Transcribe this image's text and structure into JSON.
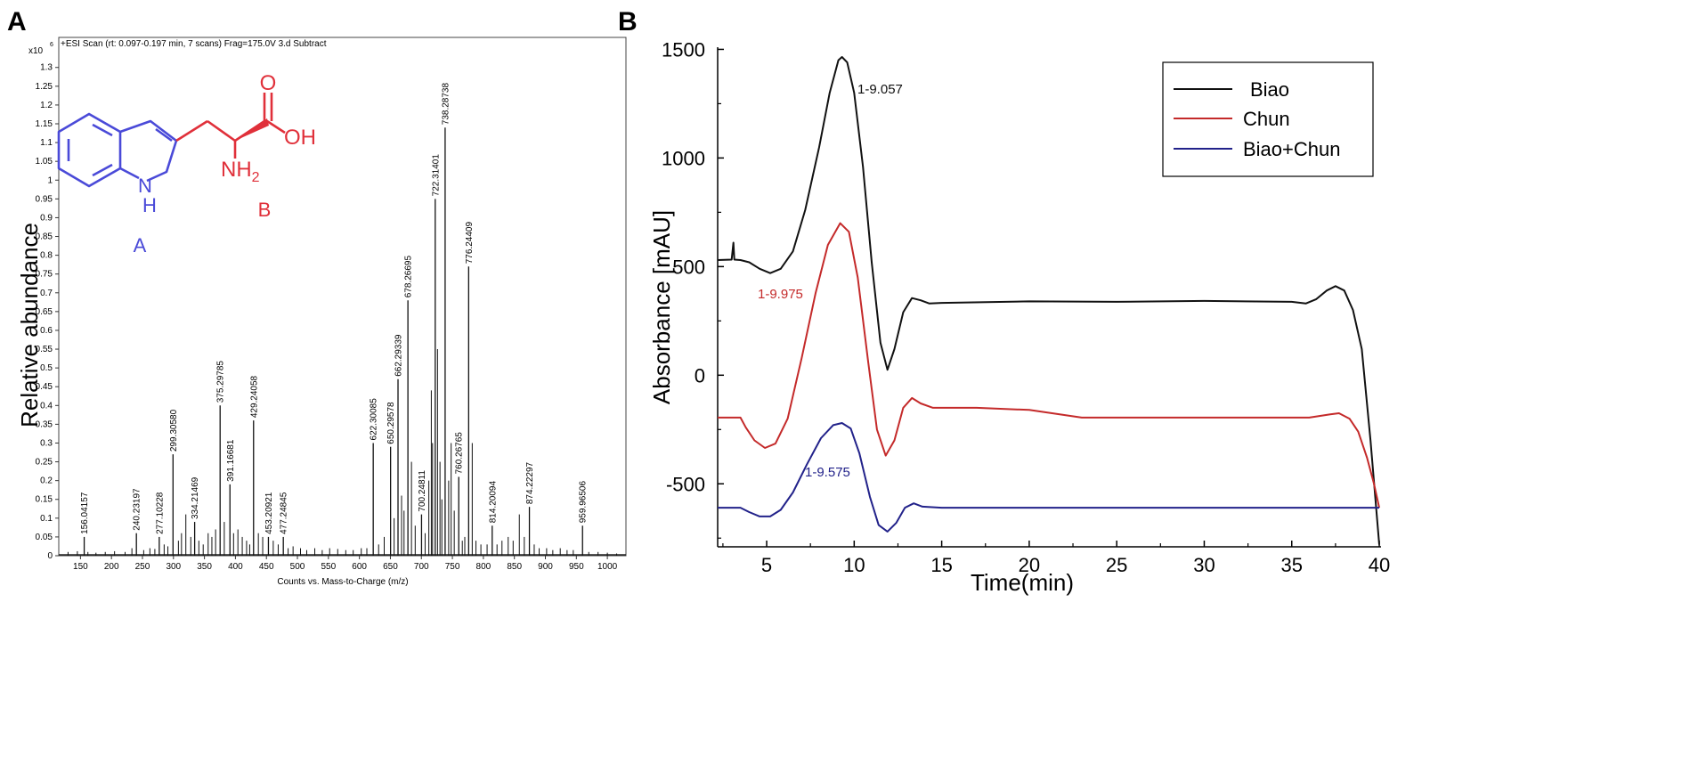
{
  "panels": {
    "a_letter": "A",
    "b_letter": "B"
  },
  "chart_data": [
    {
      "type": "bar",
      "panel": "A",
      "title": "+ESI Scan (rt: 0.097-0.197 min, 7 scans) Frag=175.0V 3.d  Subtract",
      "xlabel": "Counts vs. Mass-to-Charge (m/z)",
      "ylabel": "Relative abundance",
      "y_multiplier": "x10",
      "y_exponent": "6",
      "xlim": [
        115,
        1030
      ],
      "ylim": [
        0,
        1.38
      ],
      "x_ticks": [
        150,
        200,
        250,
        300,
        350,
        400,
        450,
        500,
        550,
        600,
        650,
        700,
        750,
        800,
        850,
        900,
        950,
        1000
      ],
      "y_ticks": [
        0,
        0.05,
        0.1,
        0.15,
        0.2,
        0.25,
        0.3,
        0.35,
        0.4,
        0.45,
        0.5,
        0.55,
        0.6,
        0.65,
        0.7,
        0.75,
        0.8,
        0.85,
        0.9,
        0.95,
        1,
        1.05,
        1.1,
        1.15,
        1.2,
        1.25,
        1.3
      ],
      "y_tick_labels": [
        "0",
        "0.05",
        "0.1",
        "0.15",
        "0.2",
        "0.25",
        "0.3",
        "0.35",
        "0.4",
        "0.45",
        "0.5",
        "0.55",
        "0.6",
        "0.65",
        "0.7",
        "0.75",
        "0.8",
        "0.85",
        "0.9",
        "0.95",
        "1",
        "1.05",
        "1.1",
        "1.15",
        "1.2",
        "1.25",
        "1.3"
      ],
      "labeled_peaks": [
        {
          "mz": 156.04157,
          "y": 0.05,
          "label": "156.04157"
        },
        {
          "mz": 240.23197,
          "y": 0.06,
          "label": "240.23197"
        },
        {
          "mz": 277.10228,
          "y": 0.05,
          "label": "277.10228"
        },
        {
          "mz": 299.3058,
          "y": 0.27,
          "label": "299.30580"
        },
        {
          "mz": 334.21469,
          "y": 0.09,
          "label": "334.21469"
        },
        {
          "mz": 375.29785,
          "y": 0.4,
          "label": "375.29785"
        },
        {
          "mz": 391.16681,
          "y": 0.19,
          "label": "391.16681"
        },
        {
          "mz": 429.24058,
          "y": 0.36,
          "label": "429.24058"
        },
        {
          "mz": 453.20921,
          "y": 0.05,
          "label": "453.20921"
        },
        {
          "mz": 477.24845,
          "y": 0.05,
          "label": "477.24845"
        },
        {
          "mz": 622.30085,
          "y": 0.3,
          "label": "622.30085"
        },
        {
          "mz": 650.29578,
          "y": 0.29,
          "label": "650.29578"
        },
        {
          "mz": 662.29339,
          "y": 0.47,
          "label": "662.29339"
        },
        {
          "mz": 678.26695,
          "y": 0.68,
          "label": "678.26695"
        },
        {
          "mz": 700.24811,
          "y": 0.11,
          "label": "700.24811"
        },
        {
          "mz": 722.31401,
          "y": 0.95,
          "label": "722.31401"
        },
        {
          "mz": 738.28738,
          "y": 1.14,
          "label": "738.28738"
        },
        {
          "mz": 760.26765,
          "y": 0.21,
          "label": "760.26765"
        },
        {
          "mz": 776.24409,
          "y": 0.77,
          "label": "776.24409"
        },
        {
          "mz": 814.20094,
          "y": 0.08,
          "label": "814.20094"
        },
        {
          "mz": 874.22297,
          "y": 0.13,
          "label": "874.22297"
        },
        {
          "mz": 959.96506,
          "y": 0.08,
          "label": "959.96506"
        }
      ],
      "minor_peaks": [
        [
          130,
          0.01
        ],
        [
          145,
          0.012
        ],
        [
          162,
          0.01
        ],
        [
          175,
          0.008
        ],
        [
          190,
          0.01
        ],
        [
          205,
          0.012
        ],
        [
          222,
          0.01
        ],
        [
          233,
          0.02
        ],
        [
          252,
          0.015
        ],
        [
          262,
          0.02
        ],
        [
          270,
          0.018
        ],
        [
          285,
          0.03
        ],
        [
          291,
          0.025
        ],
        [
          308,
          0.04
        ],
        [
          313,
          0.06
        ],
        [
          320,
          0.11
        ],
        [
          328,
          0.05
        ],
        [
          341,
          0.04
        ],
        [
          348,
          0.03
        ],
        [
          356,
          0.06
        ],
        [
          362,
          0.05
        ],
        [
          368,
          0.07
        ],
        [
          382,
          0.09
        ],
        [
          397,
          0.06
        ],
        [
          404,
          0.07
        ],
        [
          411,
          0.05
        ],
        [
          418,
          0.04
        ],
        [
          423,
          0.03
        ],
        [
          437,
          0.06
        ],
        [
          444,
          0.05
        ],
        [
          461,
          0.04
        ],
        [
          469,
          0.03
        ],
        [
          485,
          0.02
        ],
        [
          493,
          0.025
        ],
        [
          505,
          0.02
        ],
        [
          515,
          0.015
        ],
        [
          528,
          0.02
        ],
        [
          540,
          0.015
        ],
        [
          552,
          0.02
        ],
        [
          565,
          0.018
        ],
        [
          578,
          0.015
        ],
        [
          590,
          0.015
        ],
        [
          603,
          0.02
        ],
        [
          612,
          0.02
        ],
        [
          631,
          0.03
        ],
        [
          640,
          0.05
        ],
        [
          656,
          0.1
        ],
        [
          668,
          0.16
        ],
        [
          672,
          0.12
        ],
        [
          684,
          0.25
        ],
        [
          690,
          0.08
        ],
        [
          706,
          0.06
        ],
        [
          712,
          0.2
        ],
        [
          716,
          0.44
        ],
        [
          718,
          0.3
        ],
        [
          726,
          0.55
        ],
        [
          730,
          0.25
        ],
        [
          733,
          0.15
        ],
        [
          744,
          0.2
        ],
        [
          748,
          0.3
        ],
        [
          753,
          0.12
        ],
        [
          766,
          0.04
        ],
        [
          770,
          0.05
        ],
        [
          782,
          0.3
        ],
        [
          788,
          0.04
        ],
        [
          796,
          0.03
        ],
        [
          806,
          0.03
        ],
        [
          822,
          0.03
        ],
        [
          830,
          0.04
        ],
        [
          840,
          0.05
        ],
        [
          848,
          0.04
        ],
        [
          858,
          0.11
        ],
        [
          866,
          0.05
        ],
        [
          882,
          0.03
        ],
        [
          890,
          0.02
        ],
        [
          902,
          0.02
        ],
        [
          912,
          0.015
        ],
        [
          924,
          0.02
        ],
        [
          935,
          0.015
        ],
        [
          945,
          0.015
        ],
        [
          970,
          0.01
        ],
        [
          985,
          0.01
        ],
        [
          1000,
          0.008
        ],
        [
          1015,
          0.006
        ]
      ],
      "structure": {
        "oxygen_label": "O",
        "hydroxyl_label": "OH",
        "amine_label": "NH",
        "amine_subscript": "2",
        "ring_n": "N",
        "ring_h": "H",
        "region_a_label": "A",
        "region_b_label": "B",
        "region_a_color": "#4a4ad8",
        "region_b_color": "#e0303a"
      }
    },
    {
      "type": "line",
      "panel": "B",
      "xlabel": "Time(min)",
      "ylabel": "Absorbance [mAU]",
      "xlim": [
        2.2,
        40.1
      ],
      "ylim": [
        -790,
        1510
      ],
      "x_ticks": [
        5,
        10,
        15,
        20,
        25,
        30,
        35,
        40
      ],
      "x_tick_labels": [
        "5",
        "10",
        "15",
        "20",
        "25",
        "30",
        "35",
        "40"
      ],
      "y_ticks": [
        -500,
        0,
        500,
        1000,
        1500
      ],
      "y_tick_labels": [
        "-500",
        "0",
        "500",
        "1000",
        "1500"
      ],
      "legend_position": "top-right",
      "series": [
        {
          "name": "Biao",
          "color": "#111111",
          "annotation": "1-9.057",
          "points": [
            [
              2.2,
              530
            ],
            [
              3.0,
              532
            ],
            [
              3.1,
              610
            ],
            [
              3.15,
              532
            ],
            [
              3.5,
              530
            ],
            [
              4.0,
              520
            ],
            [
              4.6,
              490
            ],
            [
              5.2,
              470
            ],
            [
              5.8,
              490
            ],
            [
              6.5,
              570
            ],
            [
              7.2,
              760
            ],
            [
              8.0,
              1050
            ],
            [
              8.6,
              1300
            ],
            [
              9.1,
              1450
            ],
            [
              9.3,
              1465
            ],
            [
              9.6,
              1440
            ],
            [
              10.0,
              1300
            ],
            [
              10.5,
              960
            ],
            [
              11.0,
              520
            ],
            [
              11.5,
              150
            ],
            [
              11.9,
              25
            ],
            [
              12.3,
              120
            ],
            [
              12.8,
              290
            ],
            [
              13.3,
              355
            ],
            [
              13.8,
              345
            ],
            [
              14.3,
              330
            ],
            [
              15,
              333
            ],
            [
              20,
              340
            ],
            [
              25,
              338
            ],
            [
              30,
              342
            ],
            [
              35,
              338
            ],
            [
              35.8,
              330
            ],
            [
              36.4,
              350
            ],
            [
              37.0,
              390
            ],
            [
              37.5,
              410
            ],
            [
              38.0,
              390
            ],
            [
              38.5,
              300
            ],
            [
              39.0,
              120
            ],
            [
              39.5,
              -300
            ],
            [
              40.0,
              -780
            ]
          ]
        },
        {
          "name": "Chun",
          "color": "#c42a2a",
          "annotation": "1-9.975",
          "points": [
            [
              2.2,
              -195
            ],
            [
              3.5,
              -195
            ],
            [
              3.8,
              -240
            ],
            [
              4.3,
              -300
            ],
            [
              4.9,
              -335
            ],
            [
              5.5,
              -315
            ],
            [
              6.2,
              -200
            ],
            [
              7.0,
              80
            ],
            [
              7.8,
              380
            ],
            [
              8.5,
              600
            ],
            [
              9.2,
              700
            ],
            [
              9.7,
              660
            ],
            [
              10.2,
              450
            ],
            [
              10.8,
              60
            ],
            [
              11.3,
              -250
            ],
            [
              11.8,
              -370
            ],
            [
              12.3,
              -300
            ],
            [
              12.8,
              -150
            ],
            [
              13.3,
              -105
            ],
            [
              13.8,
              -130
            ],
            [
              14.5,
              -150
            ],
            [
              17,
              -150
            ],
            [
              20,
              -160
            ],
            [
              23,
              -195
            ],
            [
              28,
              -195
            ],
            [
              33,
              -195
            ],
            [
              36,
              -195
            ],
            [
              37.2,
              -180
            ],
            [
              37.7,
              -175
            ],
            [
              38.3,
              -200
            ],
            [
              38.8,
              -260
            ],
            [
              39.3,
              -380
            ],
            [
              39.7,
              -500
            ],
            [
              40.0,
              -610
            ]
          ]
        },
        {
          "name": "Biao+Chun",
          "color": "#22228a",
          "annotation": "1-9.575",
          "points": [
            [
              2.2,
              -610
            ],
            [
              3.5,
              -610
            ],
            [
              4.0,
              -630
            ],
            [
              4.6,
              -650
            ],
            [
              5.2,
              -650
            ],
            [
              5.8,
              -620
            ],
            [
              6.5,
              -540
            ],
            [
              7.3,
              -410
            ],
            [
              8.1,
              -290
            ],
            [
              8.8,
              -230
            ],
            [
              9.3,
              -220
            ],
            [
              9.8,
              -245
            ],
            [
              10.3,
              -360
            ],
            [
              10.9,
              -560
            ],
            [
              11.4,
              -690
            ],
            [
              11.9,
              -720
            ],
            [
              12.4,
              -680
            ],
            [
              12.9,
              -610
            ],
            [
              13.4,
              -590
            ],
            [
              13.9,
              -605
            ],
            [
              15,
              -610
            ],
            [
              20,
              -610
            ],
            [
              30,
              -610
            ],
            [
              40,
              -610
            ]
          ]
        }
      ]
    }
  ]
}
